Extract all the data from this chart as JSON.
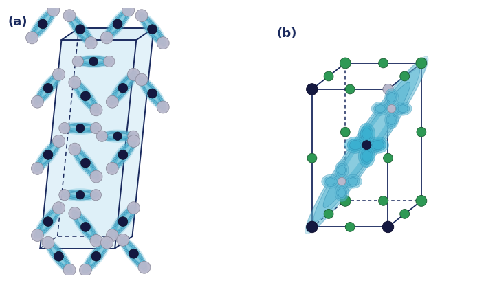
{
  "fig_width": 7.2,
  "fig_height": 4.12,
  "dpi": 100,
  "bg_color": "#ffffff",
  "label_a": "(a)",
  "label_b": "(b)",
  "label_fontsize": 13,
  "label_color": "#1a2a5e",
  "sky_blue": "#5bb8d4",
  "sky_blue_light": "#a8daea",
  "sky_blue_dark": "#2e8ab0",
  "cell_face_color": "#cde8f5",
  "cell_edge_color": "#1a2a5e",
  "dashed_color": "#1a2a5e",
  "dark_atom_color": "#141840",
  "light_atom_color": "#b8b8cc",
  "green_atom_color": "#2e9955",
  "orbital_color": "#3ab0d0",
  "orbital_dark": "#1a80a0"
}
